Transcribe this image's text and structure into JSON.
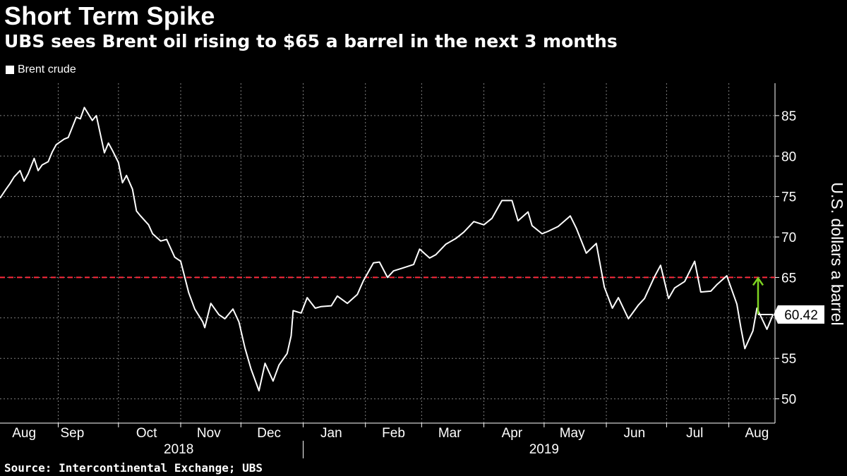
{
  "header": {
    "title": "Short Term Spike",
    "subtitle": "UBS sees Brent oil rising to $65 a barrel in the next 3 months"
  },
  "legend": {
    "label": "Brent crude",
    "position": "top-left"
  },
  "footer": {
    "source": "Source: Intercontinental Exchange; UBS"
  },
  "colors": {
    "background": "#000000",
    "line": "#ffffff",
    "target_line": "#ff2a3c",
    "arrow": "#7ed321",
    "grid": "#7f7f7f"
  },
  "chart_data": {
    "type": "line",
    "title": "Short Term Spike",
    "subtitle": "UBS sees Brent oil rising to $65 a barrel in the next 3 months",
    "ylabel": "U.S. dollars a barrel",
    "xlabel": "",
    "y_axis_position": "right",
    "ylim": [
      47,
      89
    ],
    "xlim": [
      "2018-08-03",
      "2019-08-24"
    ],
    "yticks": [
      50,
      55,
      60,
      65,
      70,
      75,
      80,
      85
    ],
    "xticks": [
      {
        "label": "Aug",
        "date": "2018-08-15"
      },
      {
        "label": "Sep",
        "date": "2018-09-08"
      },
      {
        "label": "Oct",
        "date": "2018-10-15"
      },
      {
        "label": "Nov",
        "date": "2018-11-15"
      },
      {
        "label": "Dec",
        "date": "2018-12-15"
      },
      {
        "label": "Jan",
        "date": "2019-01-15"
      },
      {
        "label": "Feb",
        "date": "2019-02-15"
      },
      {
        "label": "Mar",
        "date": "2019-03-15"
      },
      {
        "label": "Apr",
        "date": "2019-04-15"
      },
      {
        "label": "May",
        "date": "2019-05-15"
      },
      {
        "label": "Jun",
        "date": "2019-06-15"
      },
      {
        "label": "Jul",
        "date": "2019-07-15"
      },
      {
        "label": "Aug",
        "date": "2019-08-15"
      }
    ],
    "year_labels": [
      {
        "label": "2018",
        "date": "2018-10-31"
      },
      {
        "label": "2019",
        "date": "2019-05-01"
      }
    ],
    "year_divider": "2019-01-01",
    "vertical_grid": [
      "2018-09-01",
      "2018-10-01",
      "2018-11-01",
      "2018-12-01",
      "2019-01-01",
      "2019-02-01",
      "2019-03-01",
      "2019-04-01",
      "2019-05-01",
      "2019-06-01",
      "2019-07-01",
      "2019-08-01"
    ],
    "grid": true,
    "series": [
      {
        "name": "Brent crude",
        "x": [
          "2018-08-03",
          "2018-08-06",
          "2018-08-08",
          "2018-08-10",
          "2018-08-13",
          "2018-08-15",
          "2018-08-17",
          "2018-08-20",
          "2018-08-22",
          "2018-08-24",
          "2018-08-27",
          "2018-08-29",
          "2018-08-31",
          "2018-09-04",
          "2018-09-06",
          "2018-09-10",
          "2018-09-12",
          "2018-09-14",
          "2018-09-18",
          "2018-09-20",
          "2018-09-24",
          "2018-09-26",
          "2018-09-28",
          "2018-10-01",
          "2018-10-03",
          "2018-10-05",
          "2018-10-08",
          "2018-10-10",
          "2018-10-12",
          "2018-10-16",
          "2018-10-18",
          "2018-10-22",
          "2018-10-25",
          "2018-10-29",
          "2018-11-01",
          "2018-11-05",
          "2018-11-08",
          "2018-11-12",
          "2018-11-13",
          "2018-11-16",
          "2018-11-20",
          "2018-11-23",
          "2018-11-27",
          "2018-11-30",
          "2018-12-03",
          "2018-12-06",
          "2018-12-10",
          "2018-12-13",
          "2018-12-17",
          "2018-12-20",
          "2018-12-24",
          "2018-12-26",
          "2018-12-27",
          "2018-12-31",
          "2019-01-03",
          "2019-01-07",
          "2019-01-10",
          "2019-01-15",
          "2019-01-18",
          "2019-01-23",
          "2019-01-28",
          "2019-01-31",
          "2019-02-05",
          "2019-02-08",
          "2019-02-12",
          "2019-02-15",
          "2019-02-20",
          "2019-02-25",
          "2019-02-28",
          "2019-03-05",
          "2019-03-08",
          "2019-03-13",
          "2019-03-18",
          "2019-03-22",
          "2019-03-27",
          "2019-04-01",
          "2019-04-05",
          "2019-04-10",
          "2019-04-15",
          "2019-04-18",
          "2019-04-23",
          "2019-04-25",
          "2019-04-30",
          "2019-05-03",
          "2019-05-08",
          "2019-05-14",
          "2019-05-17",
          "2019-05-22",
          "2019-05-27",
          "2019-05-31",
          "2019-06-04",
          "2019-06-07",
          "2019-06-12",
          "2019-06-17",
          "2019-06-20",
          "2019-06-25",
          "2019-06-28",
          "2019-07-02",
          "2019-07-05",
          "2019-07-10",
          "2019-07-15",
          "2019-07-18",
          "2019-07-23",
          "2019-07-26",
          "2019-07-31",
          "2019-08-05",
          "2019-08-07",
          "2019-08-09",
          "2019-08-13",
          "2019-08-15",
          "2019-08-20",
          "2019-08-23"
        ],
        "values": [
          74.8,
          75.9,
          76.6,
          77.4,
          78.2,
          76.9,
          77.8,
          79.7,
          78.2,
          78.9,
          79.3,
          80.5,
          81.4,
          82.1,
          82.3,
          84.8,
          84.6,
          86.0,
          84.4,
          85.0,
          80.4,
          81.6,
          80.7,
          79.2,
          76.7,
          77.6,
          75.9,
          73.2,
          72.6,
          71.5,
          70.4,
          69.5,
          69.7,
          67.5,
          67.0,
          63.1,
          61.1,
          59.5,
          58.8,
          61.8,
          60.4,
          59.9,
          61.1,
          59.5,
          56.3,
          53.7,
          51.0,
          54.4,
          52.2,
          54.2,
          55.6,
          57.8,
          60.9,
          60.6,
          62.5,
          61.2,
          61.4,
          61.5,
          62.7,
          61.8,
          62.9,
          64.6,
          66.8,
          66.9,
          65.0,
          65.8,
          66.2,
          66.6,
          68.5,
          67.4,
          67.8,
          69.1,
          69.8,
          70.6,
          71.9,
          71.5,
          72.3,
          74.5,
          74.5,
          72.0,
          73.1,
          71.4,
          70.4,
          70.7,
          71.3,
          72.6,
          71.1,
          68.0,
          69.2,
          63.8,
          61.2,
          62.5,
          59.9,
          61.6,
          62.4,
          65.1,
          66.5,
          62.4,
          63.7,
          64.5,
          67.0,
          63.2,
          63.3,
          64.1,
          65.2,
          61.7,
          58.8,
          56.2,
          58.4,
          61.2,
          58.6,
          60.42
        ]
      }
    ],
    "last_value_label": "60.42",
    "reference_lines": [
      {
        "y": 65,
        "style": "dashed"
      }
    ],
    "annotation_arrow": {
      "x": "2019-08-24",
      "from": 60.42,
      "to": 65
    }
  }
}
